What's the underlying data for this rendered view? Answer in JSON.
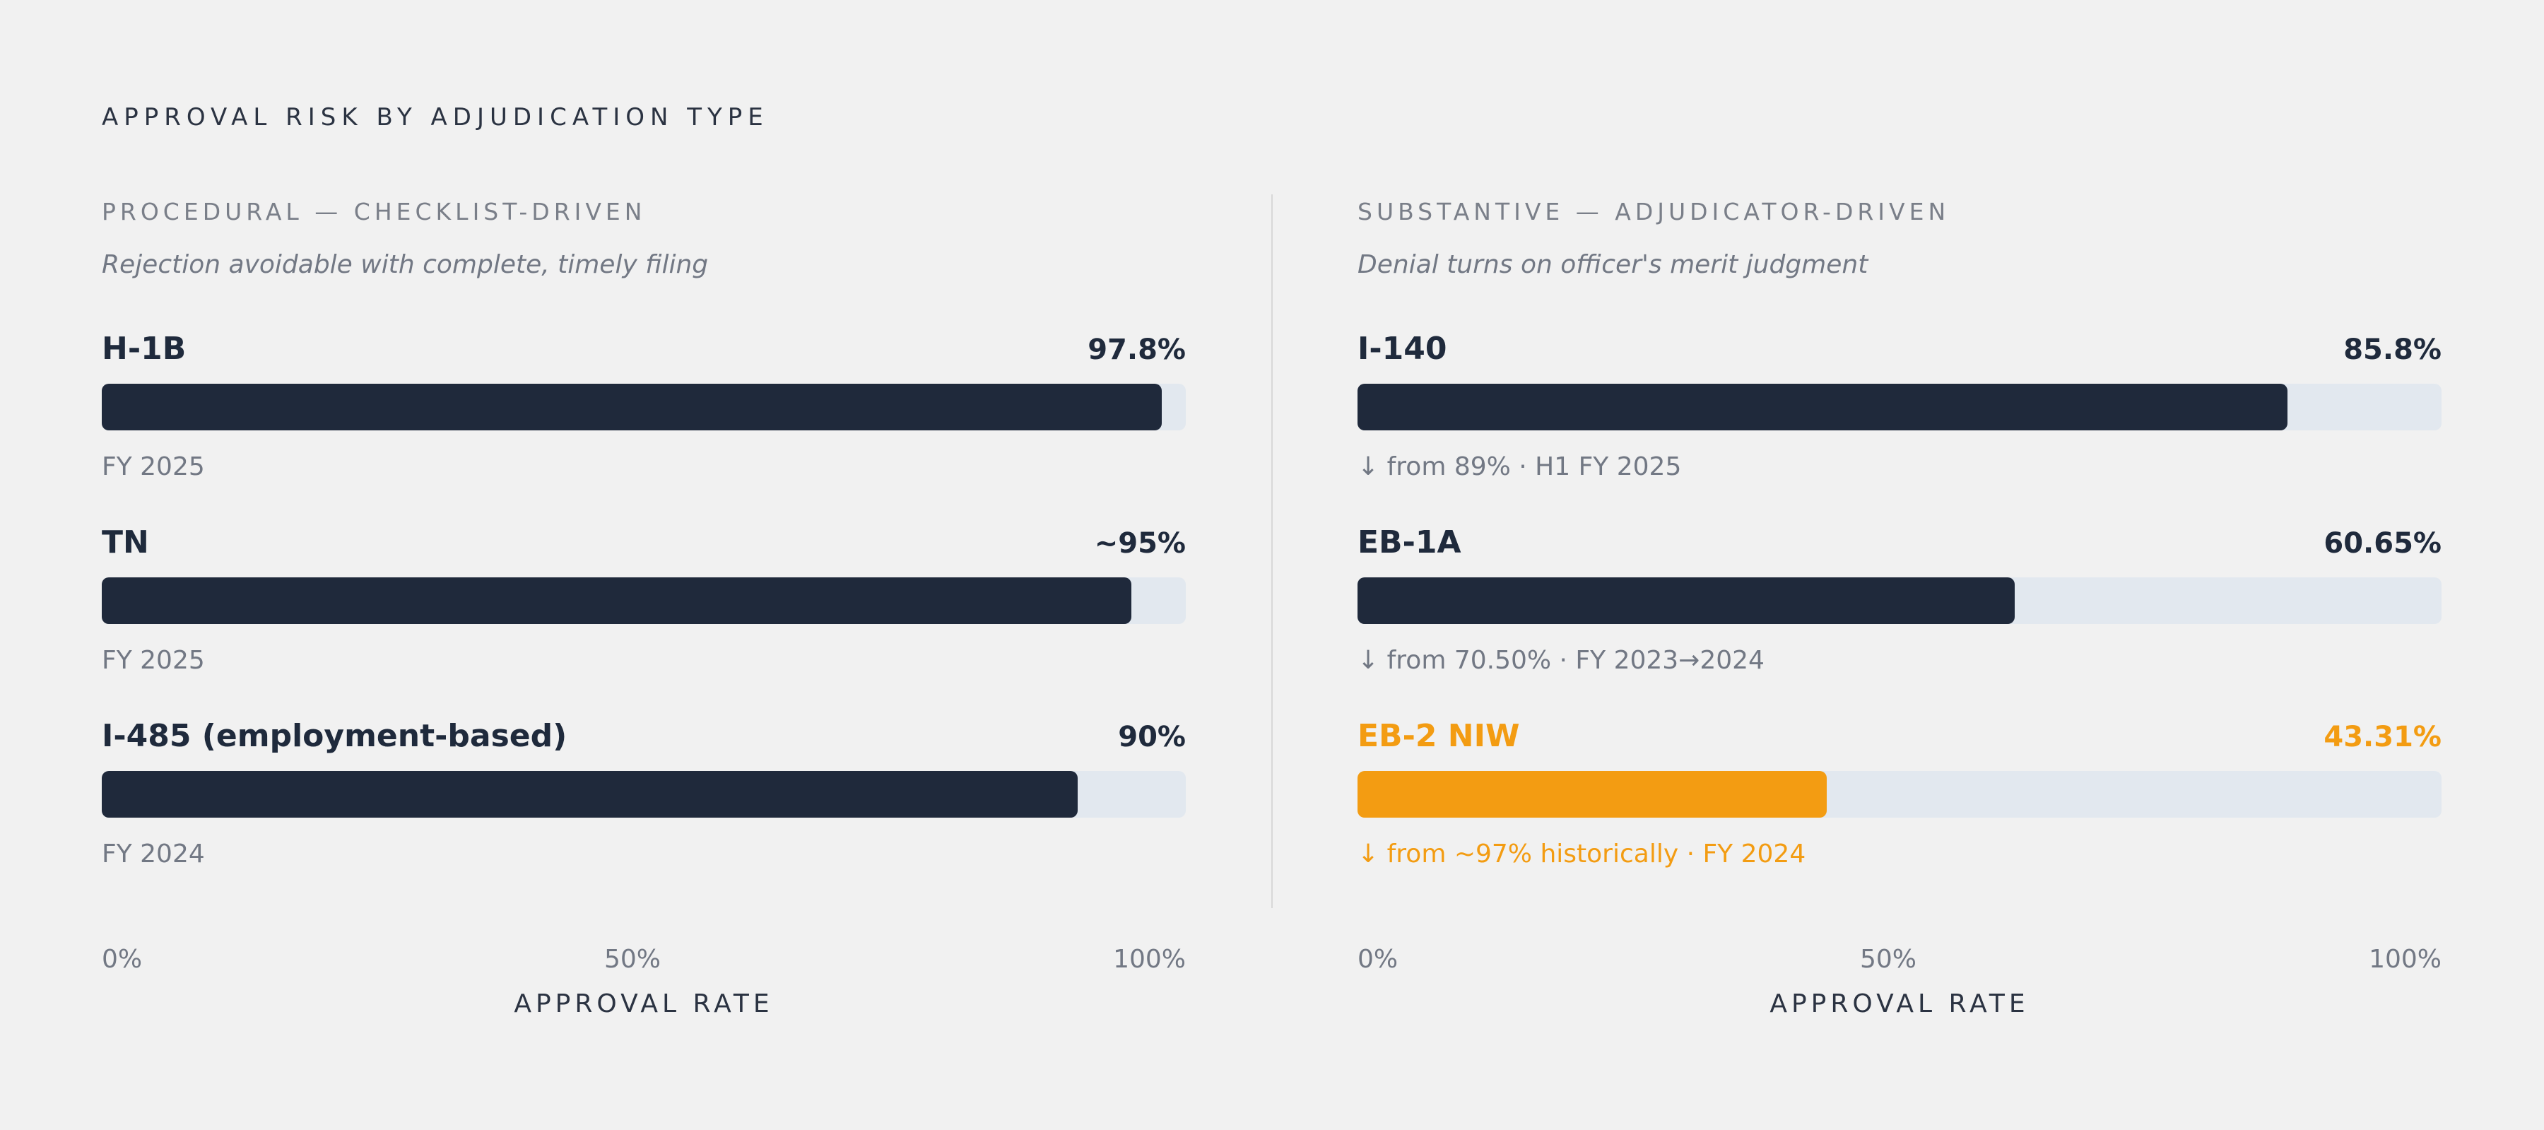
{
  "title": "APPROVAL RISK BY ADJUDICATION TYPE",
  "colors": {
    "background": "#f1f1f1",
    "bar": "#1f293b",
    "track": "#e2e8ef",
    "highlight": "#f39c12",
    "muted_text": "#727884"
  },
  "axis": {
    "ticks": [
      "0%",
      "50%",
      "100%"
    ],
    "title": "APPROVAL RATE"
  },
  "chart_data": [
    {
      "type": "bar",
      "orientation": "horizontal",
      "heading": "PROCEDURAL — CHECKLIST-DRIVEN",
      "subtitle": "Rejection avoidable with complete, timely filing",
      "xlabel": "APPROVAL RATE",
      "xlim": [
        0,
        100
      ],
      "xticks": [
        "0%",
        "50%",
        "100%"
      ],
      "categories": [
        "H-1B",
        "TN",
        "I-485 (employment-based)"
      ],
      "values": [
        97.8,
        95,
        90
      ],
      "value_labels": [
        "97.8%",
        "~95%",
        "90%"
      ],
      "notes": [
        "FY 2025",
        "FY 2025",
        "FY 2024"
      ],
      "highlighted": [
        false,
        false,
        false
      ]
    },
    {
      "type": "bar",
      "orientation": "horizontal",
      "heading": "SUBSTANTIVE — ADJUDICATOR-DRIVEN",
      "subtitle": "Denial turns on officer's merit judgment",
      "xlabel": "APPROVAL RATE",
      "xlim": [
        0,
        100
      ],
      "xticks": [
        "0%",
        "50%",
        "100%"
      ],
      "categories": [
        "I-140",
        "EB-1A",
        "EB-2 NIW"
      ],
      "values": [
        85.8,
        60.65,
        43.31
      ],
      "value_labels": [
        "85.8%",
        "60.65%",
        "43.31%"
      ],
      "notes": [
        "↓ from 89% · H1 FY 2025",
        "↓ from 70.50% · FY 2023→2024",
        "↓ from ~97% historically · FY 2024"
      ],
      "highlighted": [
        false,
        false,
        true
      ]
    }
  ]
}
